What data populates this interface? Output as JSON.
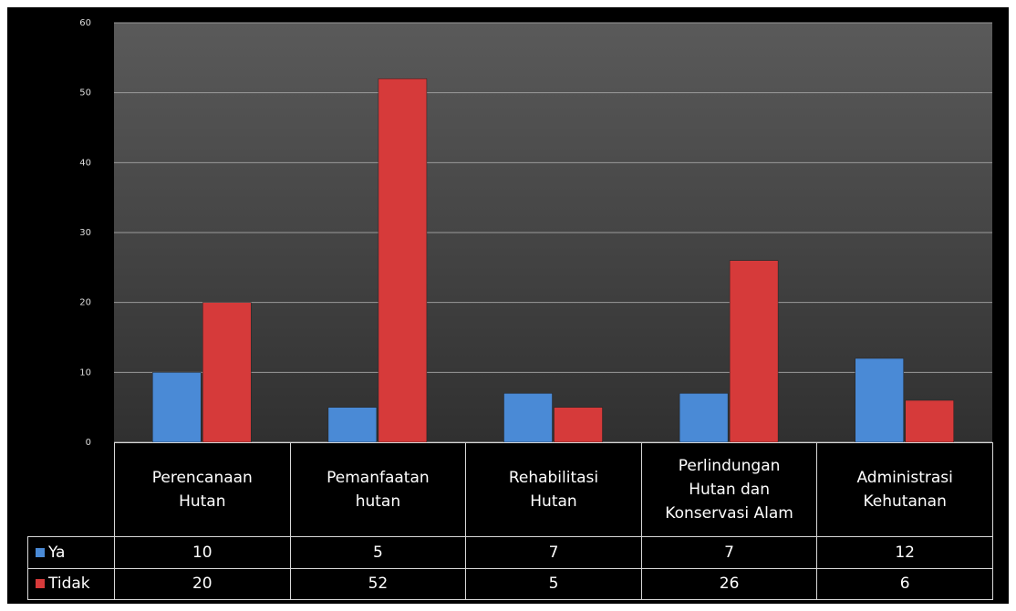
{
  "chart_data": {
    "type": "bar",
    "categories": [
      "Perencanaan Hutan",
      "Pemanfaatan hutan",
      "Rehabilitasi Hutan",
      "Perlindungan Hutan dan Konservasi Alam",
      "Administrasi Kehutanan"
    ],
    "series": [
      {
        "name": "Ya",
        "color": "#4a8ad6",
        "values": [
          10,
          5,
          7,
          7,
          12
        ]
      },
      {
        "name": "Tidak",
        "color": "#d63a3a",
        "values": [
          20,
          52,
          5,
          26,
          6
        ]
      }
    ],
    "ylim": [
      0,
      60
    ],
    "yticks": [
      0,
      10,
      20,
      30,
      40,
      50,
      60
    ],
    "grid": true,
    "data_table": true
  }
}
